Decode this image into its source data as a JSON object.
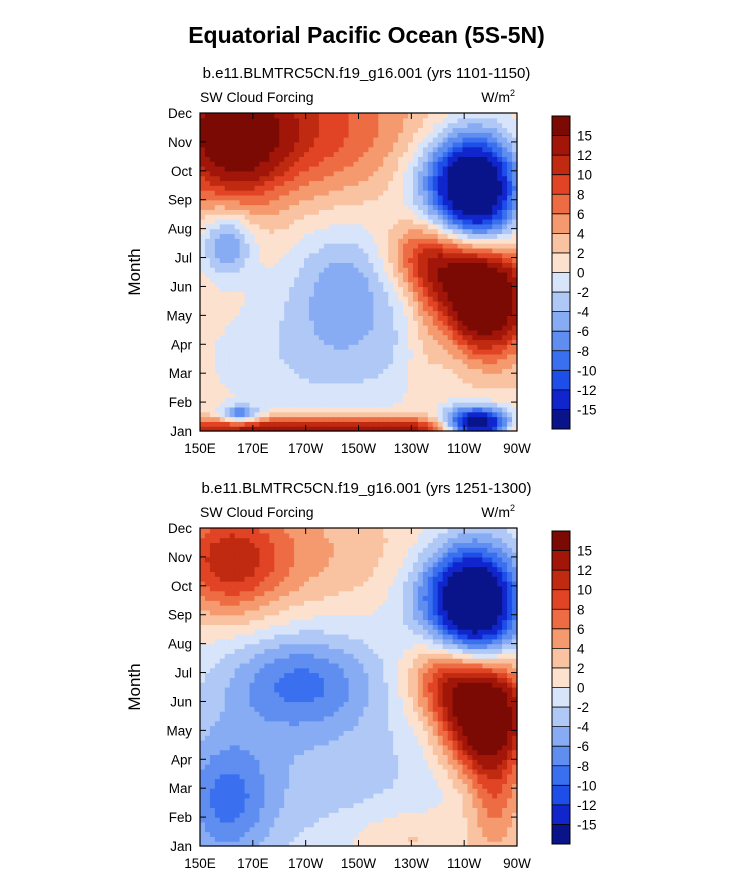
{
  "figure": {
    "title": "Equatorial Pacific Ocean (5S-5N)"
  },
  "chart_data": [
    {
      "type": "heatmap",
      "title": "b.e11.BLMTRC5CN.f19_g16.001 (yrs 1101-1150)",
      "left_label": "SW Cloud Forcing",
      "units_label": "W/m",
      "units_superscript": "2",
      "ylabel": "Month",
      "xlabel": "",
      "x_ticks": [
        "150E",
        "170E",
        "170W",
        "150W",
        "130W",
        "110W",
        "90W"
      ],
      "y_ticks": [
        "Jan",
        "Feb",
        "Mar",
        "Apr",
        "May",
        "Jun",
        "Jul",
        "Aug",
        "Sep",
        "Oct",
        "Nov",
        "Dec"
      ],
      "x_range_lon_east": [
        150,
        270
      ],
      "colorbar_ticks": [
        "15",
        "12",
        "10",
        "8",
        "6",
        "4",
        "2",
        "0",
        "-2",
        "-4",
        "-6",
        "-8",
        "-10",
        "-12",
        "-15"
      ],
      "blobs": [
        {
          "lon": 163,
          "mon": 10.2,
          "v": 12,
          "sx": 13,
          "sy": 1.4
        },
        {
          "lon": 160,
          "mon": 10.6,
          "v": 5,
          "sx": 30,
          "sy": 1.8
        },
        {
          "lon": 195,
          "mon": 10.5,
          "v": 5,
          "sx": 26,
          "sy": 1.6
        },
        {
          "lon": 255,
          "mon": 8.3,
          "v": -22,
          "sx": 11,
          "sy": 1.4
        },
        {
          "lon": 243,
          "mon": 8.7,
          "v": -6,
          "sx": 12,
          "sy": 1.1
        },
        {
          "lon": 258,
          "mon": 4.6,
          "v": 22,
          "sx": 11,
          "sy": 1.3
        },
        {
          "lon": 242,
          "mon": 5.7,
          "v": 9,
          "sx": 10,
          "sy": 1.0
        },
        {
          "lon": 230,
          "mon": 6.2,
          "v": 4,
          "sx": 9,
          "sy": 0.8
        },
        {
          "lon": 205,
          "mon": 5.2,
          "v": -6,
          "sx": 16,
          "sy": 1.6
        },
        {
          "lon": 160,
          "mon": 6.5,
          "v": -8,
          "sx": 7,
          "sy": 0.8
        },
        {
          "lon": 200,
          "mon": 2.5,
          "v": -4,
          "sx": 38,
          "sy": 1.8
        },
        {
          "lon": 200,
          "mon": 0.05,
          "v": 14,
          "sx": 55,
          "sy": 0.3
        },
        {
          "lon": 255,
          "mon": 0.2,
          "v": -26,
          "sx": 9,
          "sy": 0.4
        },
        {
          "lon": 165,
          "mon": 0.6,
          "v": -10,
          "sx": 5,
          "sy": 0.2
        },
        {
          "lon": 235,
          "mon": 2.5,
          "v": 2,
          "sx": 5,
          "sy": 2.0
        }
      ],
      "base_value": 2
    },
    {
      "type": "heatmap",
      "title": "b.e11.BLMTRC5CN.f19_g16.001 (yrs 1251-1300)",
      "left_label": "SW Cloud Forcing",
      "units_label": "W/m",
      "units_superscript": "2",
      "ylabel": "Month",
      "xlabel": "",
      "x_ticks": [
        "150E",
        "170E",
        "170W",
        "150W",
        "130W",
        "110W",
        "90W"
      ],
      "y_ticks": [
        "Jan",
        "Feb",
        "Mar",
        "Apr",
        "May",
        "Jun",
        "Jul",
        "Aug",
        "Sep",
        "Oct",
        "Nov",
        "Dec"
      ],
      "x_range_lon_east": [
        150,
        270
      ],
      "colorbar_ticks": [
        "15",
        "12",
        "10",
        "8",
        "6",
        "4",
        "2",
        "0",
        "-2",
        "-4",
        "-6",
        "-8",
        "-10",
        "-12",
        "-15"
      ],
      "blobs": [
        {
          "lon": 160,
          "mon": 9.8,
          "v": 8,
          "sx": 14,
          "sy": 1.3
        },
        {
          "lon": 172,
          "mon": 10.3,
          "v": 4,
          "sx": 24,
          "sy": 1.6
        },
        {
          "lon": 210,
          "mon": 10.2,
          "v": 2,
          "sx": 28,
          "sy": 1.4
        },
        {
          "lon": 255,
          "mon": 8.3,
          "v": -21,
          "sx": 11,
          "sy": 1.4
        },
        {
          "lon": 243,
          "mon": 8.8,
          "v": -6,
          "sx": 12,
          "sy": 1.1
        },
        {
          "lon": 258,
          "mon": 4.6,
          "v": 22,
          "sx": 11,
          "sy": 1.4
        },
        {
          "lon": 242,
          "mon": 5.8,
          "v": 8,
          "sx": 10,
          "sy": 1.0
        },
        {
          "lon": 188,
          "mon": 5.7,
          "v": -8,
          "sx": 20,
          "sy": 1.2
        },
        {
          "lon": 160,
          "mon": 1.5,
          "v": -7,
          "sx": 12,
          "sy": 1.6
        },
        {
          "lon": 190,
          "mon": 2.5,
          "v": -3,
          "sx": 40,
          "sy": 2.0
        },
        {
          "lon": 228,
          "mon": 0.3,
          "v": 3,
          "sx": 16,
          "sy": 0.7
        },
        {
          "lon": 262,
          "mon": 1.5,
          "v": 6,
          "sx": 7,
          "sy": 1.5
        }
      ],
      "base_value": 0
    }
  ]
}
